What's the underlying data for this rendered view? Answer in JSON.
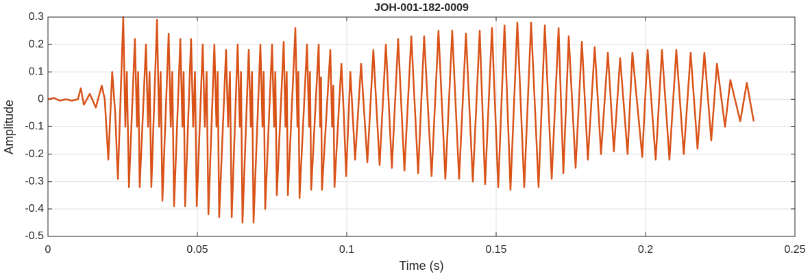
{
  "chart_data": {
    "type": "line",
    "title": "JOH-001-182-0009",
    "x_label": "Time (s)",
    "y_label": "Amplitude",
    "color": "#d95319",
    "grid": true,
    "xlim": [
      0,
      0.25
    ],
    "ylim": [
      -0.5,
      0.3
    ],
    "xticks": [
      0,
      0.05,
      0.1,
      0.15,
      0.2,
      0.25
    ],
    "yticks": [
      -0.5,
      -0.4,
      -0.3,
      -0.2,
      -0.1,
      0,
      0.1,
      0.2,
      0.3
    ],
    "x": [
      0,
      0.002,
      0.004,
      0.006,
      0.008,
      0.01,
      0.011,
      0.012,
      0.014,
      0.016,
      0.018,
      0.019,
      0.0202,
      0.0215,
      0.0225,
      0.0234,
      0.0252,
      0.0259,
      0.0264,
      0.0271,
      0.0291,
      0.0298,
      0.0302,
      0.0307,
      0.0328,
      0.0335,
      0.034,
      0.0346,
      0.0365,
      0.0372,
      0.0377,
      0.0383,
      0.0404,
      0.0411,
      0.0416,
      0.0422,
      0.0443,
      0.045,
      0.0454,
      0.0459,
      0.0479,
      0.0486,
      0.0492,
      0.0498,
      0.0518,
      0.0525,
      0.0531,
      0.0537,
      0.0557,
      0.0564,
      0.0568,
      0.0573,
      0.0596,
      0.0603,
      0.0609,
      0.0615,
      0.0635,
      0.0642,
      0.0646,
      0.0651,
      0.0672,
      0.0679,
      0.0683,
      0.0688,
      0.0711,
      0.0718,
      0.0722,
      0.0727,
      0.075,
      0.0757,
      0.0761,
      0.0766,
      0.0789,
      0.0795,
      0.0799,
      0.0803,
      0.0828,
      0.0835,
      0.0838,
      0.0842,
      0.0867,
      0.0874,
      0.0877,
      0.0881,
      0.0906,
      0.0911,
      0.0914,
      0.0917,
      0.0945,
      0.0951,
      0.0955,
      0.0959,
      0.0982,
      0.099,
      0.0998,
      0.1012,
      0.1028,
      0.1048,
      0.1069,
      0.1089,
      0.111,
      0.1131,
      0.1151,
      0.1172,
      0.1193,
      0.1216,
      0.1239,
      0.1259,
      0.1284,
      0.1307,
      0.133,
      0.1353,
      0.1376,
      0.1399,
      0.1422,
      0.1445,
      0.1463,
      0.1486,
      0.1507,
      0.1528,
      0.1548,
      0.1571,
      0.1594,
      0.1617,
      0.1642,
      0.1663,
      0.1686,
      0.1709,
      0.1725,
      0.1743,
      0.1766,
      0.1787,
      0.1807,
      0.183,
      0.1851,
      0.1874,
      0.1894,
      0.1915,
      0.194,
      0.1956,
      0.1989,
      0.2007,
      0.2034,
      0.2055,
      0.208,
      0.2103,
      0.2128,
      0.2151,
      0.2174,
      0.2197,
      0.222,
      0.2239,
      0.2266,
      0.2284,
      0.2317,
      0.2339,
      0.2362
    ],
    "values": [
      0,
      0.005,
      -0.005,
      0,
      -0.005,
      0,
      0.04,
      -0.02,
      0.02,
      -0.03,
      0.05,
      0,
      -0.22,
      0.1,
      -0.05,
      -0.29,
      0.3,
      -0.1,
      0.1,
      -0.32,
      0.22,
      -0.1,
      0.1,
      -0.32,
      0.2,
      -0.1,
      0.1,
      -0.32,
      0.29,
      -0.1,
      0.1,
      -0.37,
      0.24,
      -0.1,
      0.1,
      -0.39,
      0.22,
      -0.1,
      0.1,
      -0.39,
      0.22,
      -0.1,
      0.1,
      -0.39,
      0.2,
      -0.1,
      0.1,
      -0.42,
      0.2,
      -0.1,
      0.1,
      -0.43,
      0.18,
      -0.1,
      0.1,
      -0.43,
      0.2,
      -0.1,
      0.1,
      -0.45,
      0.18,
      -0.1,
      0.1,
      -0.45,
      0.2,
      -0.1,
      0.1,
      -0.4,
      0.2,
      -0.1,
      0.1,
      -0.35,
      0.21,
      -0.1,
      0.1,
      -0.35,
      0.26,
      -0.1,
      0.1,
      -0.36,
      0.2,
      -0.1,
      0.1,
      -0.33,
      0.2,
      -0.1,
      0.08,
      -0.33,
      0.18,
      -0.1,
      0.05,
      -0.32,
      0.13,
      -0.05,
      -0.28,
      0.1,
      -0.22,
      0.13,
      -0.23,
      0.18,
      -0.24,
      0.2,
      -0.25,
      0.22,
      -0.26,
      0.23,
      -0.27,
      0.23,
      -0.28,
      0.25,
      -0.29,
      0.25,
      -0.29,
      0.24,
      -0.3,
      0.25,
      -0.31,
      0.26,
      -0.32,
      0.27,
      -0.33,
      0.28,
      -0.32,
      0.28,
      -0.32,
      0.27,
      -0.29,
      0.26,
      -0.27,
      0.23,
      -0.25,
      0.21,
      -0.22,
      0.19,
      -0.2,
      0.17,
      -0.19,
      0.15,
      -0.2,
      0.17,
      -0.21,
      0.18,
      -0.22,
      0.18,
      -0.22,
      0.18,
      -0.2,
      0.17,
      -0.18,
      0.17,
      -0.15,
      0.13,
      -0.1,
      0.07,
      -0.08,
      0.06,
      -0.08
    ]
  }
}
